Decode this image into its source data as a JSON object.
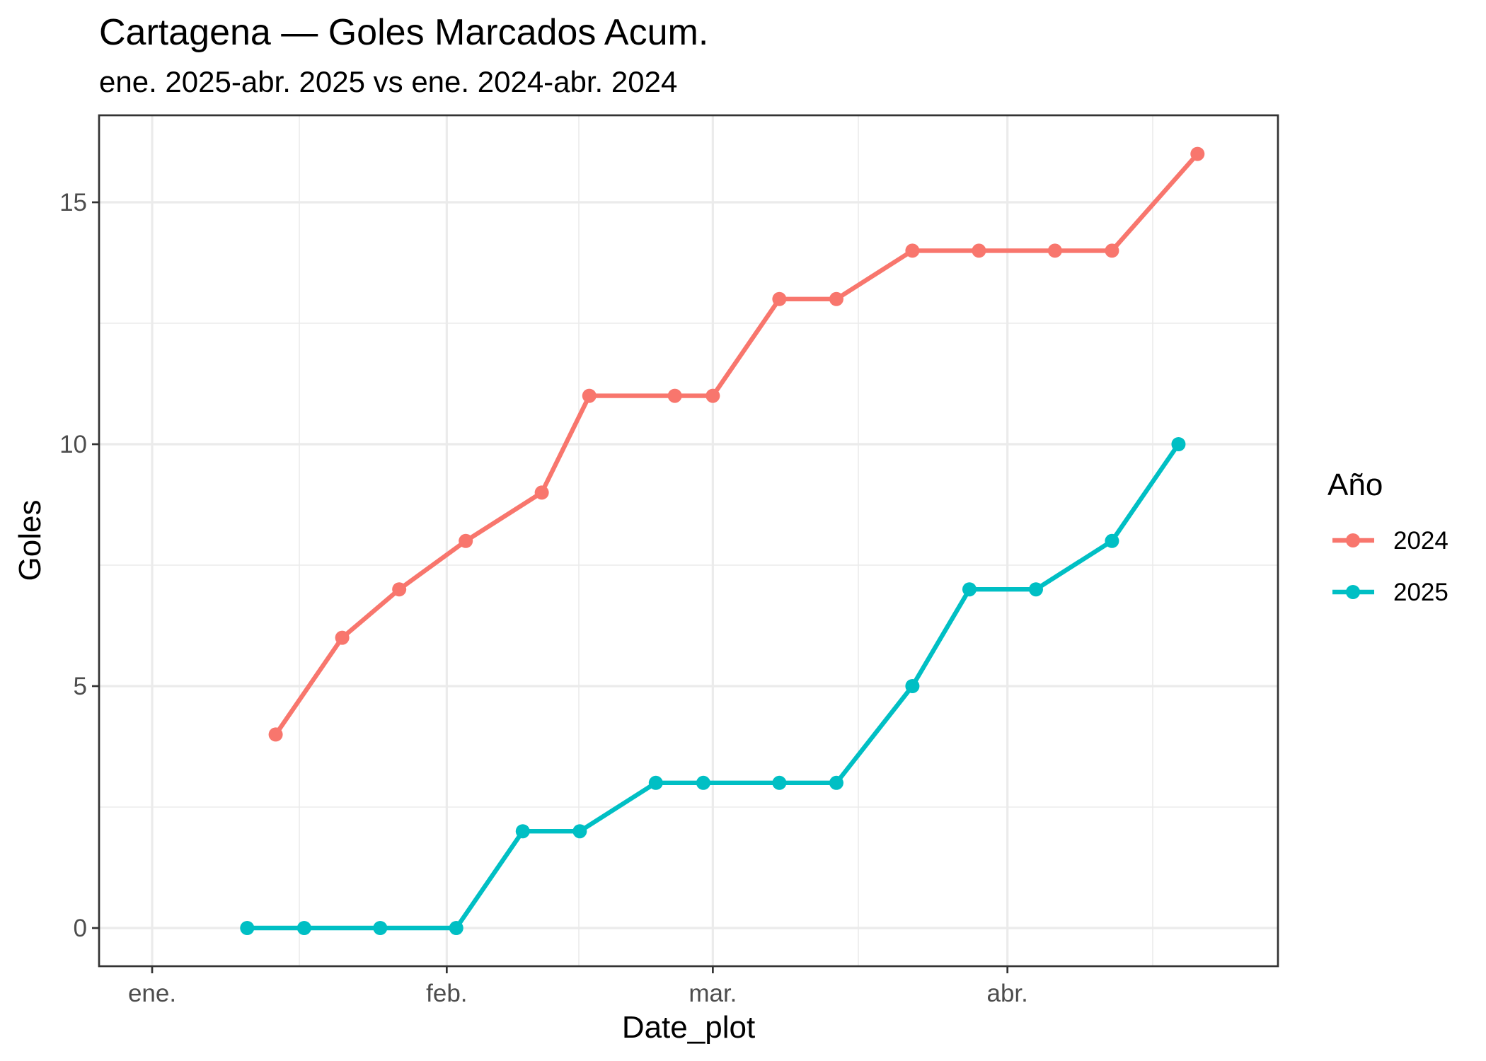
{
  "chart_data": {
    "type": "line",
    "title": "Cartagena — Goles Marcados Acum.",
    "subtitle": "ene. 2025-abr. 2025 vs ene. 2024-abr. 2024",
    "xlabel": "Date_plot",
    "ylabel": "Goles",
    "x_ticks": [
      "ene.",
      "feb.",
      "mar.",
      "abr."
    ],
    "y_ticks": [
      0,
      5,
      10,
      15
    ],
    "ylim": [
      -0.8,
      16.8
    ],
    "grid": true,
    "legend": {
      "title": "Año",
      "position": "right"
    },
    "series": [
      {
        "name": "2024",
        "color": "#F8766D",
        "points": [
          {
            "date": "01-14",
            "value": 4
          },
          {
            "date": "01-21",
            "value": 6
          },
          {
            "date": "01-27",
            "value": 7
          },
          {
            "date": "02-03",
            "value": 8
          },
          {
            "date": "02-11",
            "value": 9
          },
          {
            "date": "02-16",
            "value": 11
          },
          {
            "date": "02-25",
            "value": 11
          },
          {
            "date": "03-01",
            "value": 11
          },
          {
            "date": "03-08",
            "value": 13
          },
          {
            "date": "03-14",
            "value": 13
          },
          {
            "date": "03-22",
            "value": 14
          },
          {
            "date": "03-29",
            "value": 14
          },
          {
            "date": "04-06",
            "value": 14
          },
          {
            "date": "04-12",
            "value": 14
          },
          {
            "date": "04-21",
            "value": 16
          }
        ]
      },
      {
        "name": "2025",
        "color": "#00BFC4",
        "points": [
          {
            "date": "01-11",
            "value": 0
          },
          {
            "date": "01-17",
            "value": 0
          },
          {
            "date": "01-25",
            "value": 0
          },
          {
            "date": "02-02",
            "value": 0
          },
          {
            "date": "02-09",
            "value": 2
          },
          {
            "date": "02-15",
            "value": 2
          },
          {
            "date": "02-23",
            "value": 3
          },
          {
            "date": "02-28",
            "value": 3
          },
          {
            "date": "03-08",
            "value": 3
          },
          {
            "date": "03-14",
            "value": 3
          },
          {
            "date": "03-22",
            "value": 5
          },
          {
            "date": "03-28",
            "value": 7
          },
          {
            "date": "04-04",
            "value": 7
          },
          {
            "date": "04-12",
            "value": 8
          },
          {
            "date": "04-19",
            "value": 10
          }
        ]
      }
    ]
  }
}
